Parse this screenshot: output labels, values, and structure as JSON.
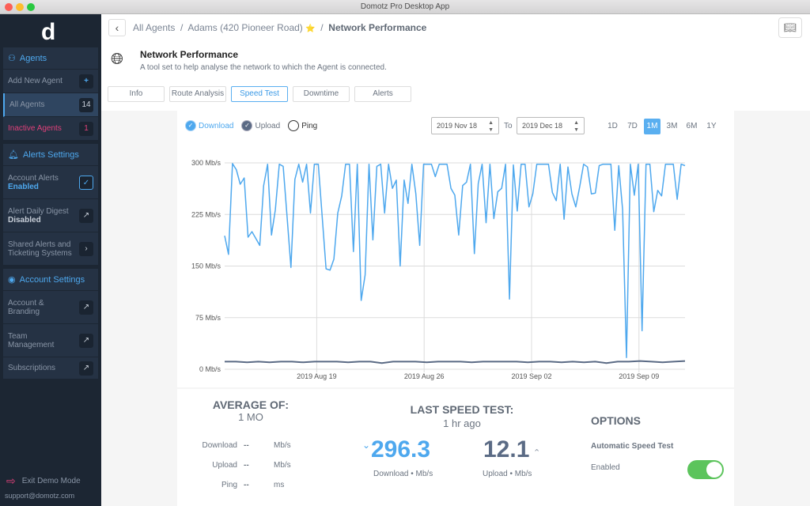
{
  "window": {
    "title": "Domotz Pro Desktop App"
  },
  "sidebar": {
    "logo": "d",
    "agents": {
      "title": "Agents",
      "items": [
        {
          "label": "Add New Agent",
          "badge": "+"
        },
        {
          "label": "All Agents",
          "badge": "14"
        },
        {
          "label": "Inactive Agents",
          "badge": "1"
        }
      ]
    },
    "alerts": {
      "title": "Alerts Settings",
      "items": [
        {
          "label": "Account Alerts",
          "sub": "Enabled",
          "icon": "check-icon"
        },
        {
          "label": "Alert Daily Digest",
          "sub": "Disabled",
          "icon": "external-arrow-icon"
        },
        {
          "label": "Shared Alerts and Ticketing Systems",
          "icon": "chevron-right-icon"
        }
      ]
    },
    "account": {
      "title": "Account Settings",
      "items": [
        {
          "label": "Account & Branding"
        },
        {
          "label": "Team Management"
        },
        {
          "label": "Subscriptions"
        }
      ]
    },
    "exit_label": "Exit Demo Mode",
    "support": "support@domotz.com"
  },
  "breadcrumb": {
    "root": "All Agents",
    "agent": "Adams (420 Pioneer Road)",
    "star": "⭐",
    "current": "Network Performance"
  },
  "header": {
    "title": "Network Performance",
    "subtitle": "A tool set to help analyse the network to which the Agent is connected."
  },
  "tabs": [
    {
      "label": "Info"
    },
    {
      "label": "Route Analysis"
    },
    {
      "label": "Speed Test",
      "active": true
    },
    {
      "label": "Downtime"
    },
    {
      "label": "Alerts"
    }
  ],
  "legend": {
    "download": "Download",
    "upload": "Upload",
    "ping": "Ping"
  },
  "dates": {
    "from": "2019 Nov 18",
    "to_label": "To",
    "to": "2019 Dec 18"
  },
  "ranges": [
    "1D",
    "7D",
    "1M",
    "3M",
    "6M",
    "1Y"
  ],
  "active_range": "1M",
  "colors": {
    "download": "#4ea8ee",
    "upload": "#5b6b85",
    "accent": "#5aaff0",
    "toggle": "#5cc45c",
    "inactive": "#e0407a"
  },
  "chart_data": {
    "type": "line",
    "y_ticks": [
      "0 Mb/s",
      "75 Mb/s",
      "150 Mb/s",
      "225 Mb/s",
      "300 Mb/s"
    ],
    "ylim": [
      0,
      300
    ],
    "x_ticks": [
      "2019 Aug 19",
      "2019 Aug 26",
      "2019 Sep 02",
      "2019 Sep 09"
    ],
    "x_range": [
      "2019 Aug 13",
      "2019 Sep 12"
    ],
    "grid": true,
    "series": [
      {
        "name": "Download",
        "values": [
          194,
          167,
          299,
          290,
          269,
          278,
          192,
          200,
          190,
          180,
          267,
          298,
          195,
          232,
          298,
          295,
          222,
          148,
          276,
          298,
          272,
          298,
          227,
          298,
          298,
          222,
          146,
          144,
          160,
          227,
          252,
          298,
          298,
          171,
          298,
          100,
          137,
          298,
          188,
          295,
          298,
          227,
          298,
          263,
          275,
          150,
          275,
          241,
          298,
          255,
          180,
          298,
          298,
          298,
          280,
          298,
          298,
          298,
          263,
          253,
          195,
          267,
          272,
          298,
          168,
          270,
          298,
          213,
          298,
          219,
          258,
          263,
          298,
          102,
          297,
          230,
          298,
          298,
          236,
          255,
          298,
          298,
          298,
          298,
          257,
          245,
          298,
          218,
          294,
          255,
          236,
          265,
          298,
          294,
          255,
          256,
          296,
          298,
          298,
          298,
          202,
          296,
          232,
          17,
          298,
          253,
          298,
          56,
          298,
          298,
          229,
          260,
          252,
          298,
          298,
          298,
          247,
          298,
          296
        ]
      },
      {
        "name": "Upload",
        "values": [
          11,
          11,
          10,
          11,
          10,
          11,
          11,
          10,
          11,
          11,
          11,
          10,
          11,
          11,
          9,
          11,
          11,
          11,
          10,
          11,
          11,
          11,
          10,
          11,
          11,
          11,
          11,
          10,
          11,
          11,
          10,
          11,
          10,
          11,
          9,
          11,
          11,
          12,
          11,
          10,
          11,
          12
        ]
      }
    ]
  },
  "averages": {
    "title": "AVERAGE OF:",
    "period": "1 MO",
    "rows": [
      {
        "label": "Download",
        "value": "--",
        "unit": "Mb/s"
      },
      {
        "label": "Upload",
        "value": "--",
        "unit": "Mb/s"
      },
      {
        "label": "Ping",
        "value": "--",
        "unit": "ms"
      }
    ]
  },
  "last_test": {
    "title": "LAST SPEED TEST:",
    "when": "1 hr ago",
    "download": "296.3",
    "download_label": "Download • Mb/s",
    "upload": "12.1",
    "upload_label": "Upload • Mb/s"
  },
  "options": {
    "title": "OPTIONS",
    "setting": "Automatic Speed Test",
    "state": "Enabled",
    "enabled": true
  }
}
